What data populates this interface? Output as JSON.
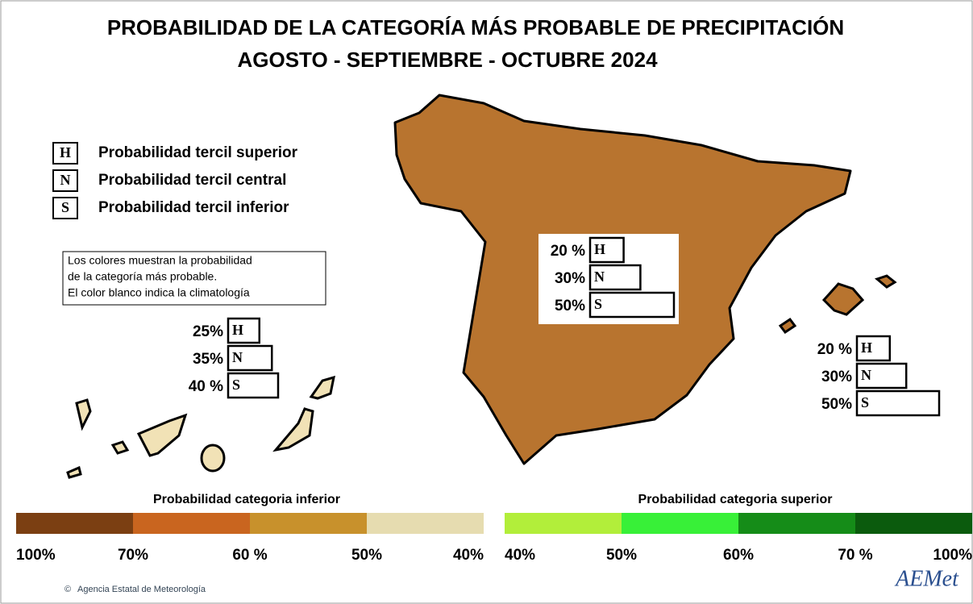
{
  "title": "PROBABILIDAD DE LA CATEGORÍA MÁS PROBABLE DE PRECIPITACIÓN",
  "subtitle": "AGOSTO - SEPTIEMBRE - OCTUBRE 2024",
  "legend": [
    {
      "key": "H",
      "text": "Probabilidad  tercil superior"
    },
    {
      "key": "N",
      "text": "Probabilidad  tercil central"
    },
    {
      "key": "S",
      "text": "Probabilidad  tercil inferior"
    }
  ],
  "note": [
    "Los colores muestran la probabilidad",
    "de la categoría más probable.",
    "El color blanco indica la climatología"
  ],
  "regions": [
    {
      "entries": [
        {
          "key": "H",
          "value": 20,
          "label": "20 %"
        },
        {
          "key": "N",
          "value": 30,
          "label": "30%"
        },
        {
          "key": "S",
          "value": 50,
          "label": "50%"
        }
      ]
    },
    {
      "entries": [
        {
          "key": "H",
          "value": 25,
          "label": "25%"
        },
        {
          "key": "N",
          "value": 35,
          "label": "35%"
        },
        {
          "key": "S",
          "value": 40,
          "label": "40 %"
        }
      ]
    },
    {
      "entries": [
        {
          "key": "H",
          "value": 20,
          "label": "20 %"
        },
        {
          "key": "N",
          "value": 30,
          "label": "30%"
        },
        {
          "key": "S",
          "value": 50,
          "label": "50%"
        }
      ]
    }
  ],
  "scales": [
    {
      "title": "Probabilidad categoria inferior",
      "colors": [
        "#7b3f12",
        "#c9651f",
        "#c8912c",
        "#e6dcb0"
      ],
      "labels": [
        "100%",
        "70%",
        "60 %",
        "50%",
        "40%"
      ]
    },
    {
      "title": "Probabilidad categoria superior",
      "colors": [
        "#b2ee3a",
        "#38f038",
        "#158c18",
        "#0b5b0d"
      ],
      "labels": [
        "40%",
        "50%",
        "60%",
        "70 %",
        "100%"
      ]
    }
  ],
  "footer": "Agencia Estatal de Meteorología",
  "logo": "AEMet"
}
